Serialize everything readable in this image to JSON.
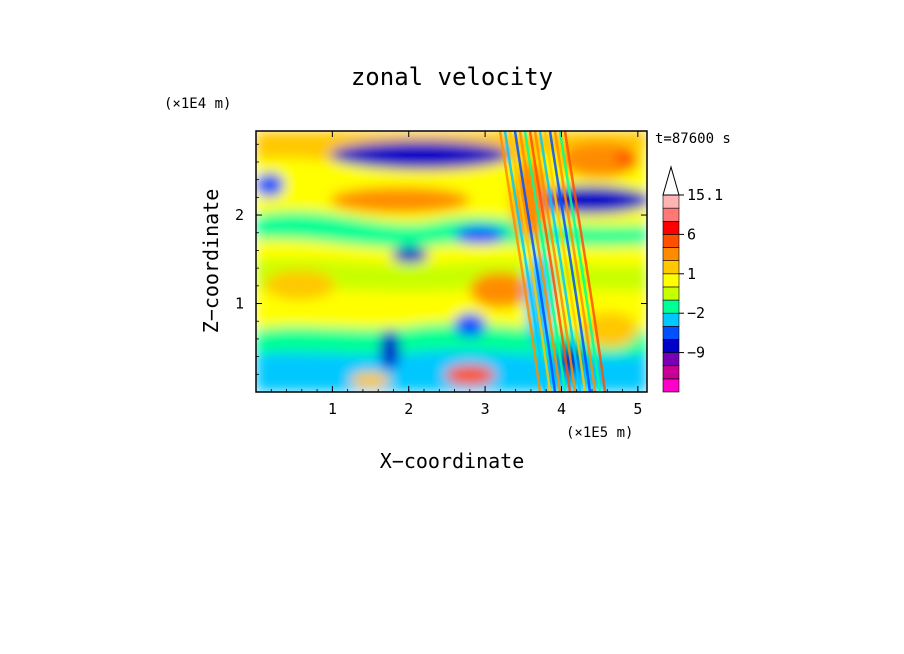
{
  "chart_data": {
    "type": "heatmap",
    "title": "zonal velocity",
    "xlabel": "X−coordinate",
    "ylabel": "Z−coordinate",
    "x_unit_label": "(×1E5 m)",
    "y_unit_label": "(×1E4 m)",
    "time_label": "t=87600 s",
    "xlim": [
      0,
      5.12
    ],
    "ylim": [
      0,
      2.95
    ],
    "x_ticks": [
      {
        "value": 1,
        "label": "1"
      },
      {
        "value": 2,
        "label": "2"
      },
      {
        "value": 3,
        "label": "3"
      },
      {
        "value": 4,
        "label": "4"
      },
      {
        "value": 5,
        "label": "5"
      }
    ],
    "y_ticks": [
      {
        "value": 1,
        "label": "1"
      },
      {
        "value": 2,
        "label": "2"
      }
    ],
    "colorbar": {
      "levels": [
        -15,
        -12,
        -9,
        -6,
        -3,
        -2,
        -1,
        0,
        1,
        2,
        3,
        6,
        9,
        12,
        15.1
      ],
      "colors": [
        "#ff00c8",
        "#c80096",
        "#7800b4",
        "#0000c8",
        "#0050ff",
        "#00c8ff",
        "#00ff96",
        "#c8ff00",
        "#ffff00",
        "#ffc800",
        "#ff8c00",
        "#ff5000",
        "#ff0000",
        "#ff7878",
        "#ffb4b4"
      ],
      "labels": [
        {
          "value": 15.1,
          "label": "15.1"
        },
        {
          "value": 6,
          "label": "6"
        },
        {
          "value": 1,
          "label": "1"
        },
        {
          "value": -2,
          "label": "−2"
        },
        {
          "value": -9,
          "label": "−9"
        }
      ],
      "extend_top_arrow": true
    },
    "grid": false
  }
}
